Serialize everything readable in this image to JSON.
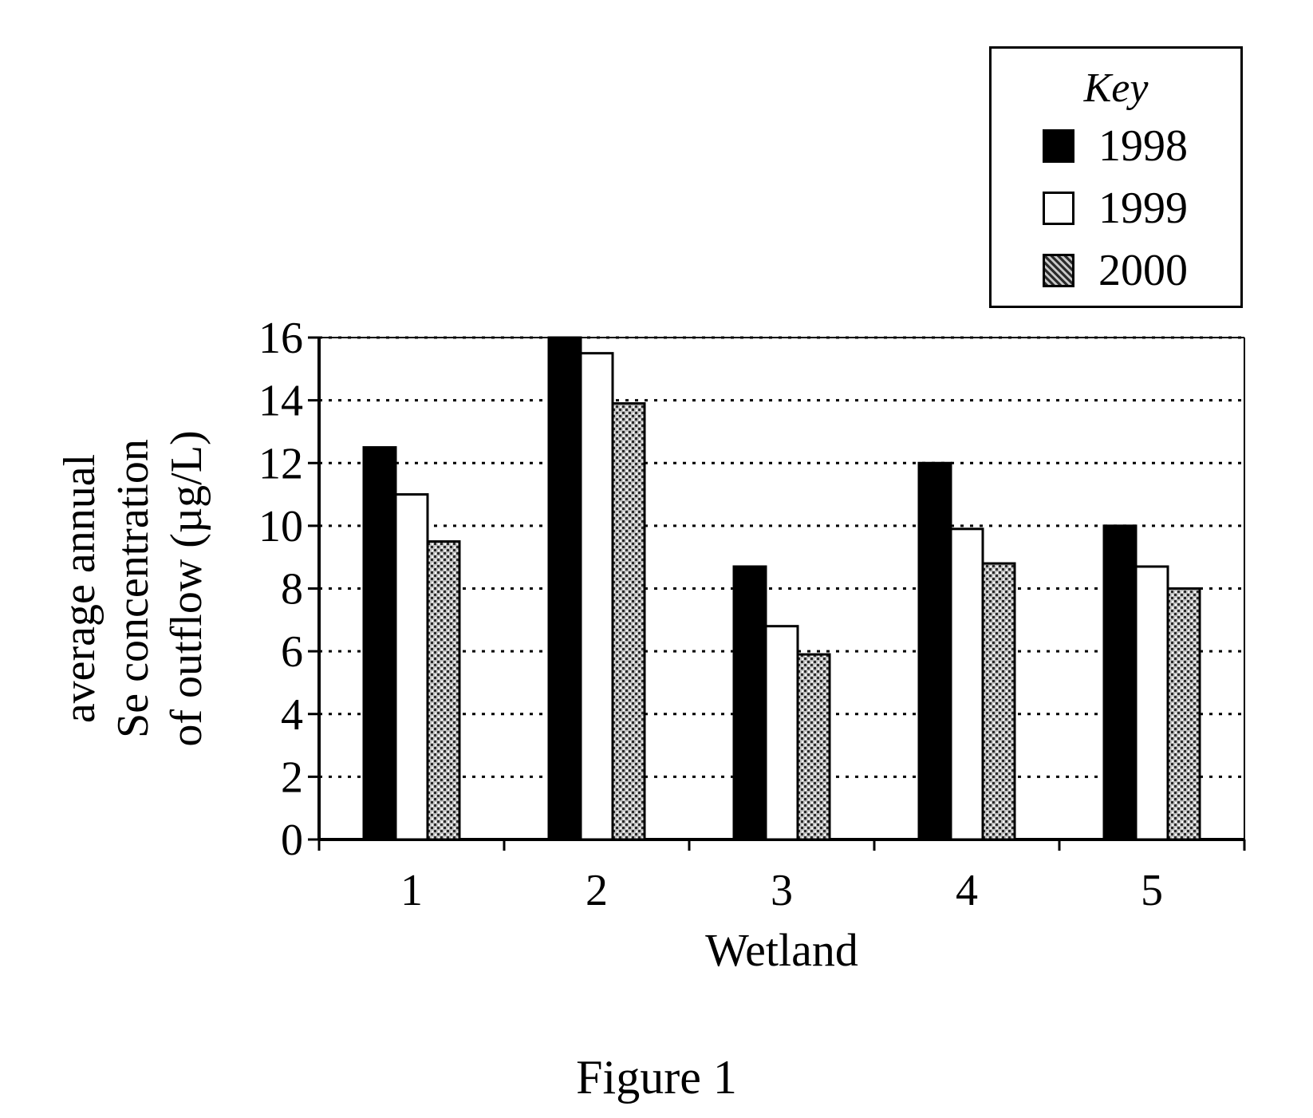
{
  "figure": {
    "caption": "Figure 1"
  },
  "chart_data": {
    "type": "bar",
    "title": "",
    "xlabel": "Wetland",
    "ylabel": "average annual Se concentration of outflow (µg/L)",
    "ylabel_lines": [
      "average annual",
      "Se concentration",
      "of outflow (µg/L)"
    ],
    "categories": [
      "1",
      "2",
      "3",
      "4",
      "5"
    ],
    "ylim": [
      0,
      16
    ],
    "yticks": [
      0,
      2,
      4,
      6,
      8,
      10,
      12,
      14,
      16
    ],
    "grid": "horizontal dotted",
    "legend_title": "Key",
    "legend_position": "top-right",
    "series": [
      {
        "name": "1998",
        "values": [
          12.5,
          16.0,
          8.7,
          12.0,
          10.0
        ],
        "fill": "solid",
        "color": "#000000"
      },
      {
        "name": "1999",
        "values": [
          11.0,
          15.5,
          6.8,
          9.9,
          8.7
        ],
        "fill": "empty",
        "color": "#ffffff"
      },
      {
        "name": "2000",
        "values": [
          9.5,
          13.9,
          5.9,
          8.8,
          8.0
        ],
        "fill": "stipple",
        "color": "#6a6a6a"
      }
    ]
  }
}
